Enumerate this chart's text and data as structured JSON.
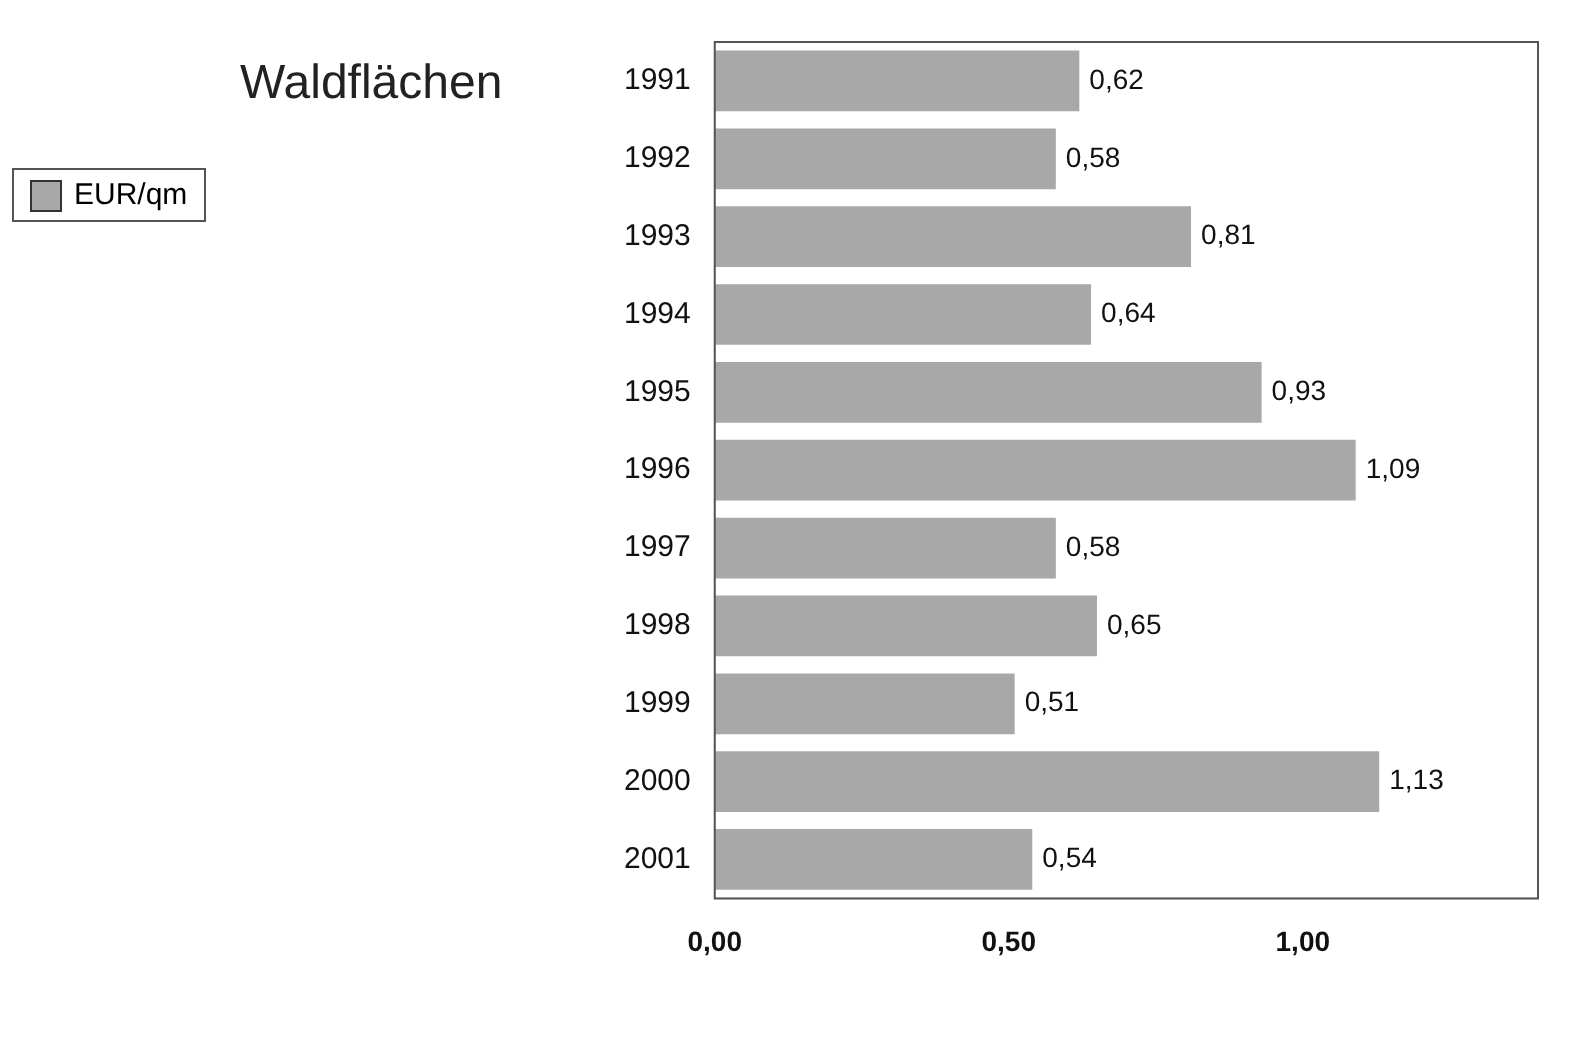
{
  "chart_data": {
    "type": "bar",
    "orientation": "horizontal",
    "title": "Waldflächen",
    "categories": [
      "1991",
      "1992",
      "1993",
      "1994",
      "1995",
      "1996",
      "1997",
      "1998",
      "1999",
      "2000",
      "2001"
    ],
    "series": [
      {
        "name": "EUR/qm",
        "color": "#a8a8a8",
        "values": [
          0.62,
          0.58,
          0.81,
          0.64,
          0.93,
          1.09,
          0.58,
          0.65,
          0.51,
          1.13,
          0.54
        ],
        "value_labels": [
          "0,62",
          "0,58",
          "0,81",
          "0,64",
          "0,93",
          "1,09",
          "0,58",
          "0,65",
          "0,51",
          "1,13",
          "0,54"
        ]
      }
    ],
    "xlim": [
      0,
      1.4
    ],
    "xticks": [
      {
        "value": 0,
        "label": "0,00"
      },
      {
        "value": 0.5,
        "label": "0,50"
      },
      {
        "value": 1,
        "label": "1,00"
      }
    ],
    "grid": false,
    "legend": "left"
  }
}
